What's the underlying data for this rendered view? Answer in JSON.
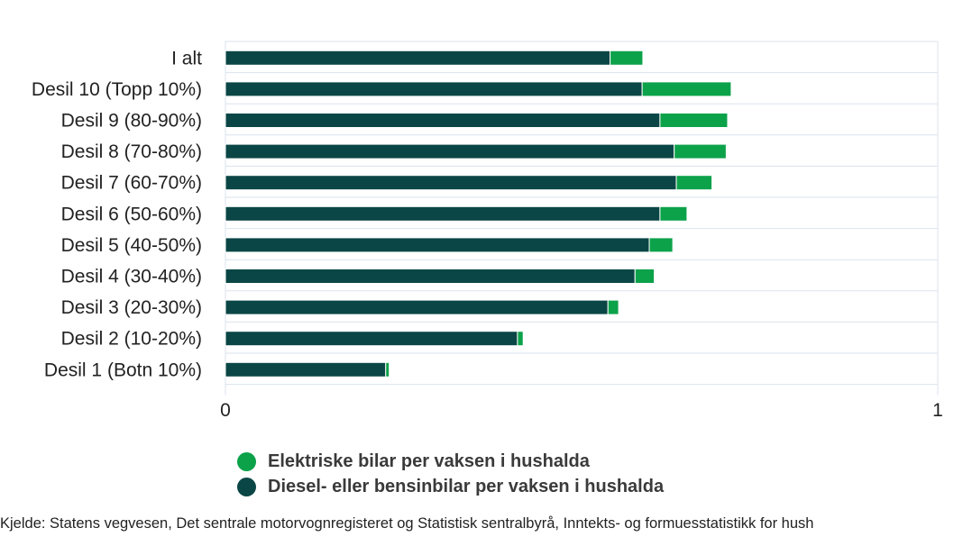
{
  "chart_data": {
    "type": "bar",
    "orientation": "horizontal",
    "stacked": true,
    "categories": [
      "I alt",
      "Desil 10 (Topp 10%)",
      "Desil 9 (80-90%)",
      "Desil 8 (70-80%)",
      "Desil 7 (60-70%)",
      "Desil 6 (50-60%)",
      "Desil 5 (40-50%)",
      "Desil 4 (30-40%)",
      "Desil 3 (20-30%)",
      "Desil 2 (10-20%)",
      "Desil 1 (Botn 10%)"
    ],
    "series": [
      {
        "name": "Diesel- eller bensinbilar per vaksen i hushalda",
        "color": "#0b4646",
        "values": [
          0.54,
          0.585,
          0.61,
          0.63,
          0.633,
          0.61,
          0.595,
          0.575,
          0.537,
          0.41,
          0.225
        ]
      },
      {
        "name": "Elektriske bilar per vaksen i hushalda",
        "color": "#0ca24a",
        "values": [
          0.046,
          0.125,
          0.095,
          0.073,
          0.05,
          0.038,
          0.033,
          0.027,
          0.015,
          0.008,
          0.005
        ]
      }
    ],
    "xlim": [
      0,
      1
    ],
    "x_ticks": [
      "0",
      "1"
    ],
    "grid": true,
    "legend_position": "bottom"
  },
  "legend": [
    {
      "label": "Elektriske bilar per vaksen i hushalda",
      "color": "#0ca24a",
      "icon": "circle"
    },
    {
      "label": "Diesel- eller bensinbilar per vaksen i hushalda",
      "color": "#0b4646",
      "icon": "circle"
    }
  ],
  "source": "Kjelde: Statens vegvesen, Det sentrale motorvognregisteret og Statistisk sentralbyrå, Inntekts- og formuesstatistikk for hush"
}
